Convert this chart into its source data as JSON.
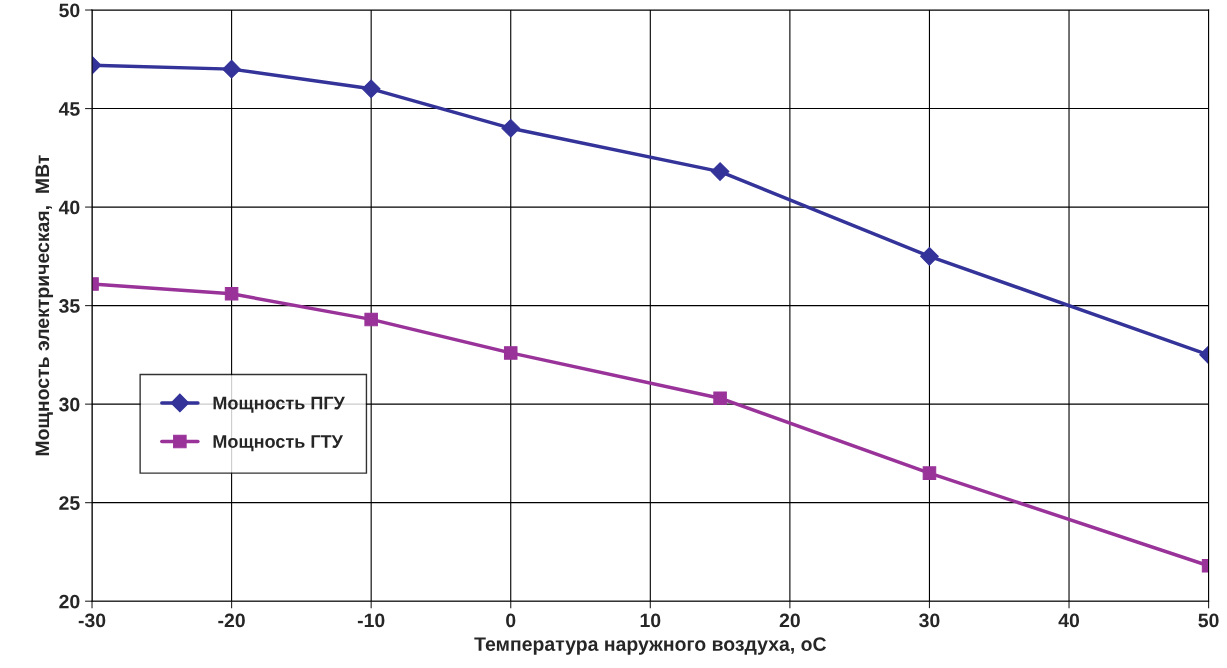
{
  "chart_data": {
    "type": "line",
    "xlabel": "Температура наружного воздуха, оС",
    "ylabel": "Мощность электрическая,  МВт",
    "x": [
      -30,
      -20,
      -10,
      0,
      15,
      30,
      50
    ],
    "series": [
      {
        "name": "Мощность ПГУ",
        "color": "#333399",
        "marker": "diamond",
        "values": [
          47.2,
          47.0,
          46.0,
          44.0,
          41.8,
          37.5,
          32.5
        ]
      },
      {
        "name": "Мощность ГТУ",
        "color": "#993399",
        "marker": "square",
        "values": [
          36.1,
          35.6,
          34.3,
          32.6,
          30.3,
          26.5,
          21.8
        ]
      }
    ],
    "xlim": [
      -30,
      50
    ],
    "xticks": [
      -30,
      -20,
      -10,
      0,
      10,
      20,
      30,
      40,
      50
    ],
    "ylim": [
      20,
      50
    ],
    "yticks": [
      20,
      25,
      30,
      35,
      40,
      45,
      50
    ],
    "grid": true,
    "legend": "center left",
    "line_style": "solid"
  }
}
